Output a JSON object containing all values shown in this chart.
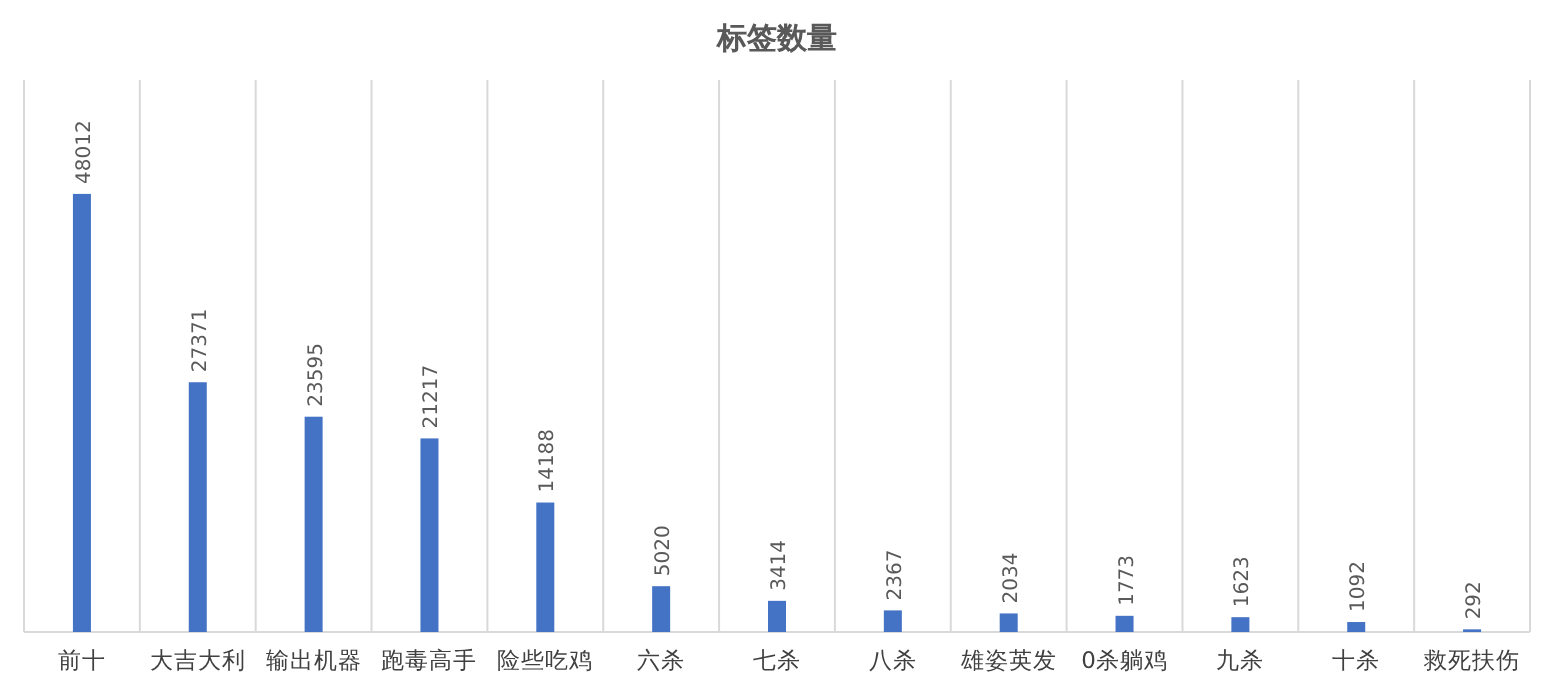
{
  "chart_data": {
    "type": "bar",
    "title": "标签数量",
    "categories": [
      "前十",
      "大吉大利",
      "输出机器",
      "跑毒高手",
      "险些吃鸡",
      "六杀",
      "七杀",
      "八杀",
      "雄姿英发",
      "0杀躺鸡",
      "九杀",
      "十杀",
      "救死扶伤"
    ],
    "values": [
      48012,
      27371,
      23595,
      21217,
      14188,
      5020,
      3414,
      2367,
      2034,
      1773,
      1623,
      1092,
      292
    ],
    "color": "#4472c4",
    "data_labels": true,
    "grid": "x"
  }
}
